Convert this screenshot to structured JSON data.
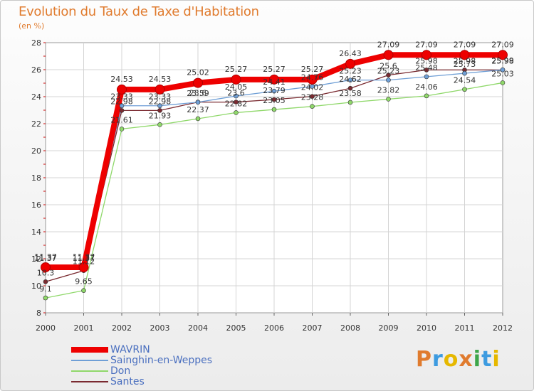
{
  "title": "Evolution du Taux de Taxe d'Habitation",
  "unit_label": "(en %)",
  "logo_text": "Proxiti",
  "logo_colors": [
    "#e07b2e",
    "#3d9be0",
    "#e6b800",
    "#e07b2e",
    "#3da64a",
    "#3d9be0",
    "#e6b800"
  ],
  "chart_data": {
    "type": "line",
    "title": "Evolution du Taux de Taxe d'Habitation",
    "ylabel": "(en %)",
    "xlabel": "",
    "x": [
      "2000",
      "2001",
      "2002",
      "2003",
      "2004",
      "2005",
      "2006",
      "2007",
      "2008",
      "2009",
      "2010",
      "2011",
      "2012"
    ],
    "ylim": [
      8,
      28
    ],
    "yticks": [
      "8",
      "10",
      "12",
      "14",
      "16",
      "18",
      "20",
      "22",
      "24",
      "26",
      "28"
    ],
    "grid": true,
    "legend_position": "bottom-left",
    "series": [
      {
        "name": "WAVRIN",
        "color": "#ee0000",
        "values": [
          11.37,
          11.37,
          24.53,
          24.53,
          25.02,
          25.27,
          25.27,
          25.27,
          26.43,
          27.09,
          27.09,
          27.09,
          27.09
        ],
        "labels": [
          "11.37",
          "11.37",
          "24.53",
          "24.53",
          "25.02",
          "25.27",
          "25.27",
          "25.27",
          "26.43",
          "27.09",
          "27.09",
          "27.09",
          "27.09"
        ]
      },
      {
        "name": "Sainghin-en-Weppes",
        "color": "#6f9fd6",
        "values": [
          11.37,
          11.37,
          23.33,
          23.33,
          23.59,
          24.05,
          24.41,
          24.76,
          25.23,
          25.23,
          25.48,
          25.73,
          25.99
        ],
        "labels": [
          "11.37",
          "11.37",
          "23.33",
          "23.33",
          "23.59",
          "24.05",
          "24.41",
          "24.76",
          "25.23",
          "25.23",
          "25.48",
          "25.73",
          "25.99"
        ]
      },
      {
        "name": "Don",
        "color": "#8fd86a",
        "values": [
          9.1,
          9.65,
          21.61,
          21.93,
          22.37,
          22.82,
          23.05,
          23.28,
          23.58,
          23.82,
          24.06,
          24.54,
          25.03
        ],
        "labels": [
          "9.1",
          "9.65",
          "21.61",
          "21.93",
          "22.37",
          "22.82",
          "23.05",
          "23.28",
          "23.58",
          "23.82",
          "24.06",
          "24.54",
          "25.03"
        ]
      },
      {
        "name": "Santes",
        "color": "#7a2a30",
        "values": [
          10.3,
          11.12,
          22.98,
          22.98,
          23.6,
          23.6,
          23.79,
          24.02,
          24.62,
          25.6,
          25.98,
          25.98,
          25.98
        ],
        "labels": [
          "10.3",
          "11.12",
          "22.98",
          "22.98",
          "23.6",
          "23.6",
          "23.79",
          "24.02",
          "24.62",
          "25.6",
          "25.98",
          "25.98",
          "25.98"
        ]
      }
    ]
  }
}
